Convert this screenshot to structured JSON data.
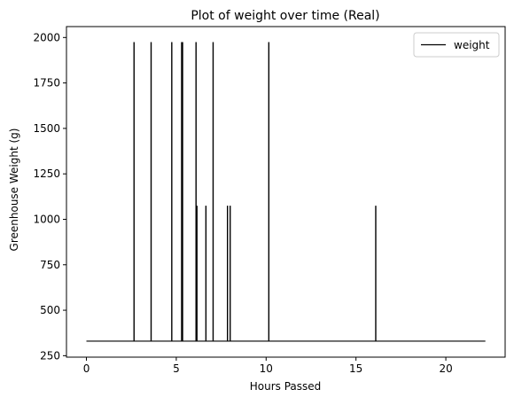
{
  "chart_data": {
    "type": "line",
    "title": "Plot of weight over time (Real)",
    "xlabel": "Hours Passed",
    "ylabel": "Greenhouse Weight (g)",
    "xlim": [
      -1.11,
      23.3
    ],
    "ylim": [
      242,
      2060
    ],
    "xticks": [
      0,
      5,
      10,
      15,
      20
    ],
    "yticks": [
      250,
      500,
      750,
      1000,
      1250,
      1500,
      1750,
      2000
    ],
    "grid": false,
    "legend": {
      "position": "top-right",
      "entries": [
        "weight"
      ]
    },
    "series": [
      {
        "name": "weight",
        "color": "#000000",
        "baseline": 330,
        "x_range": [
          0,
          22.2
        ],
        "spikes": [
          {
            "x": 2.65,
            "y": 1975
          },
          {
            "x": 3.6,
            "y": 1975
          },
          {
            "x": 4.75,
            "y": 1975
          },
          {
            "x": 5.3,
            "y": 1975
          },
          {
            "x": 5.35,
            "y": 1975
          },
          {
            "x": 6.1,
            "y": 1975
          },
          {
            "x": 6.15,
            "y": 1075
          },
          {
            "x": 6.65,
            "y": 1075
          },
          {
            "x": 7.05,
            "y": 1975
          },
          {
            "x": 7.85,
            "y": 1075
          },
          {
            "x": 8.0,
            "y": 1075
          },
          {
            "x": 10.15,
            "y": 1975
          },
          {
            "x": 16.1,
            "y": 1075
          }
        ]
      }
    ]
  }
}
